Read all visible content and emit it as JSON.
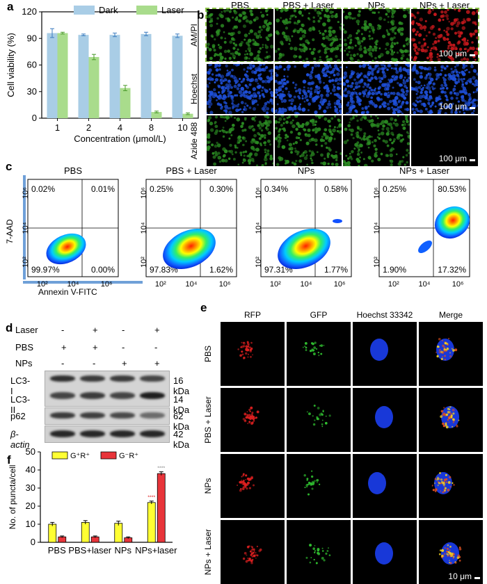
{
  "panels": {
    "a": "a",
    "b": "b",
    "c": "c",
    "d": "d",
    "e": "e",
    "f": "f"
  },
  "colors": {
    "dark": "#a9cde6",
    "laser": "#a9dc8c",
    "green_fluor": "#2a8a22",
    "red_fluor": "#c4181c",
    "blue_fluor": "#1e4fd8",
    "yellow": "#ffff33",
    "red": "#e8343a"
  },
  "panel_b": {
    "columns": [
      "PBS",
      "PBS + Laser",
      "NPs",
      "NPs + Laser"
    ],
    "rows": [
      "AM/PI",
      "Hoechst",
      "Azide 488"
    ],
    "scale": [
      "100 μm",
      "100 μm",
      "100 μm"
    ]
  },
  "panel_c": {
    "titles": [
      "PBS",
      "PBS + Laser",
      "NPs",
      "NPs + Laser"
    ],
    "ylabel": "7-AAD",
    "xlabel": "Annexin V-FITC",
    "ticks": [
      "10²",
      "10⁴",
      "10⁶"
    ],
    "quadrants": [
      [
        "0.02%",
        "0.01%",
        "99.97%",
        "0.00%"
      ],
      [
        "0.25%",
        "0.30%",
        "97.83%",
        "1.62%"
      ],
      [
        "0.34%",
        "0.58%",
        "97.31%",
        "1.77%"
      ],
      [
        "0.25%",
        "80.53%",
        "1.90%",
        "17.32%"
      ]
    ]
  },
  "panel_d": {
    "row_labels": [
      "Laser",
      "PBS",
      "NPs"
    ],
    "signs": [
      [
        "-",
        "+",
        "-",
        "+"
      ],
      [
        "+",
        "+",
        "-",
        "-"
      ],
      [
        "-",
        "-",
        "+",
        "+"
      ]
    ],
    "bands": [
      "LC3-I",
      "LC3-II",
      "p62",
      "β-actin"
    ],
    "sizes": [
      "16 kDa",
      "14 kDa",
      "62 kDa",
      "42 kDa"
    ]
  },
  "panel_e": {
    "columns": [
      "RFP",
      "GFP",
      "Hoechst 33342",
      "Merge"
    ],
    "rows": [
      "PBS",
      "PBS + Laser",
      "NPs",
      "NPs + Laser"
    ],
    "scale": "10 μm"
  },
  "chart_data": [
    {
      "type": "bar",
      "xlabel": "Concentration (μmol/L)",
      "ylabel": "Cell viability (%)",
      "categories": [
        "1",
        "2",
        "4",
        "8",
        "10"
      ],
      "ylim": [
        0,
        120
      ],
      "yticks": [
        "0",
        "30",
        "60",
        "90",
        "120"
      ],
      "legend_position": "top",
      "series": [
        {
          "name": "Dark",
          "values": [
            96,
            94,
            94,
            95,
            93
          ],
          "errors": [
            5,
            1,
            2,
            2,
            2
          ]
        },
        {
          "name": "Laser",
          "values": [
            96,
            69,
            34,
            7,
            5
          ],
          "errors": [
            1,
            3,
            3,
            1,
            1
          ]
        }
      ]
    },
    {
      "type": "bar",
      "ylabel": "No. of puncta/cell",
      "categories": [
        "PBS",
        "PBS+laser",
        "NPs",
        "NPs+laser"
      ],
      "ylim": [
        0,
        50
      ],
      "yticks": [
        "0",
        "10",
        "20",
        "30",
        "40",
        "50"
      ],
      "legend_position": "top-left",
      "series": [
        {
          "name": "G⁺R⁺",
          "values": [
            10,
            11,
            10.5,
            22
          ],
          "errors": [
            1,
            1,
            1.2,
            0.8
          ]
        },
        {
          "name": "G⁻R⁺",
          "values": [
            3,
            3,
            2.5,
            38
          ],
          "errors": [
            0.5,
            0.5,
            0.5,
            1
          ]
        }
      ],
      "annotations": [
        "****",
        "****"
      ]
    }
  ]
}
